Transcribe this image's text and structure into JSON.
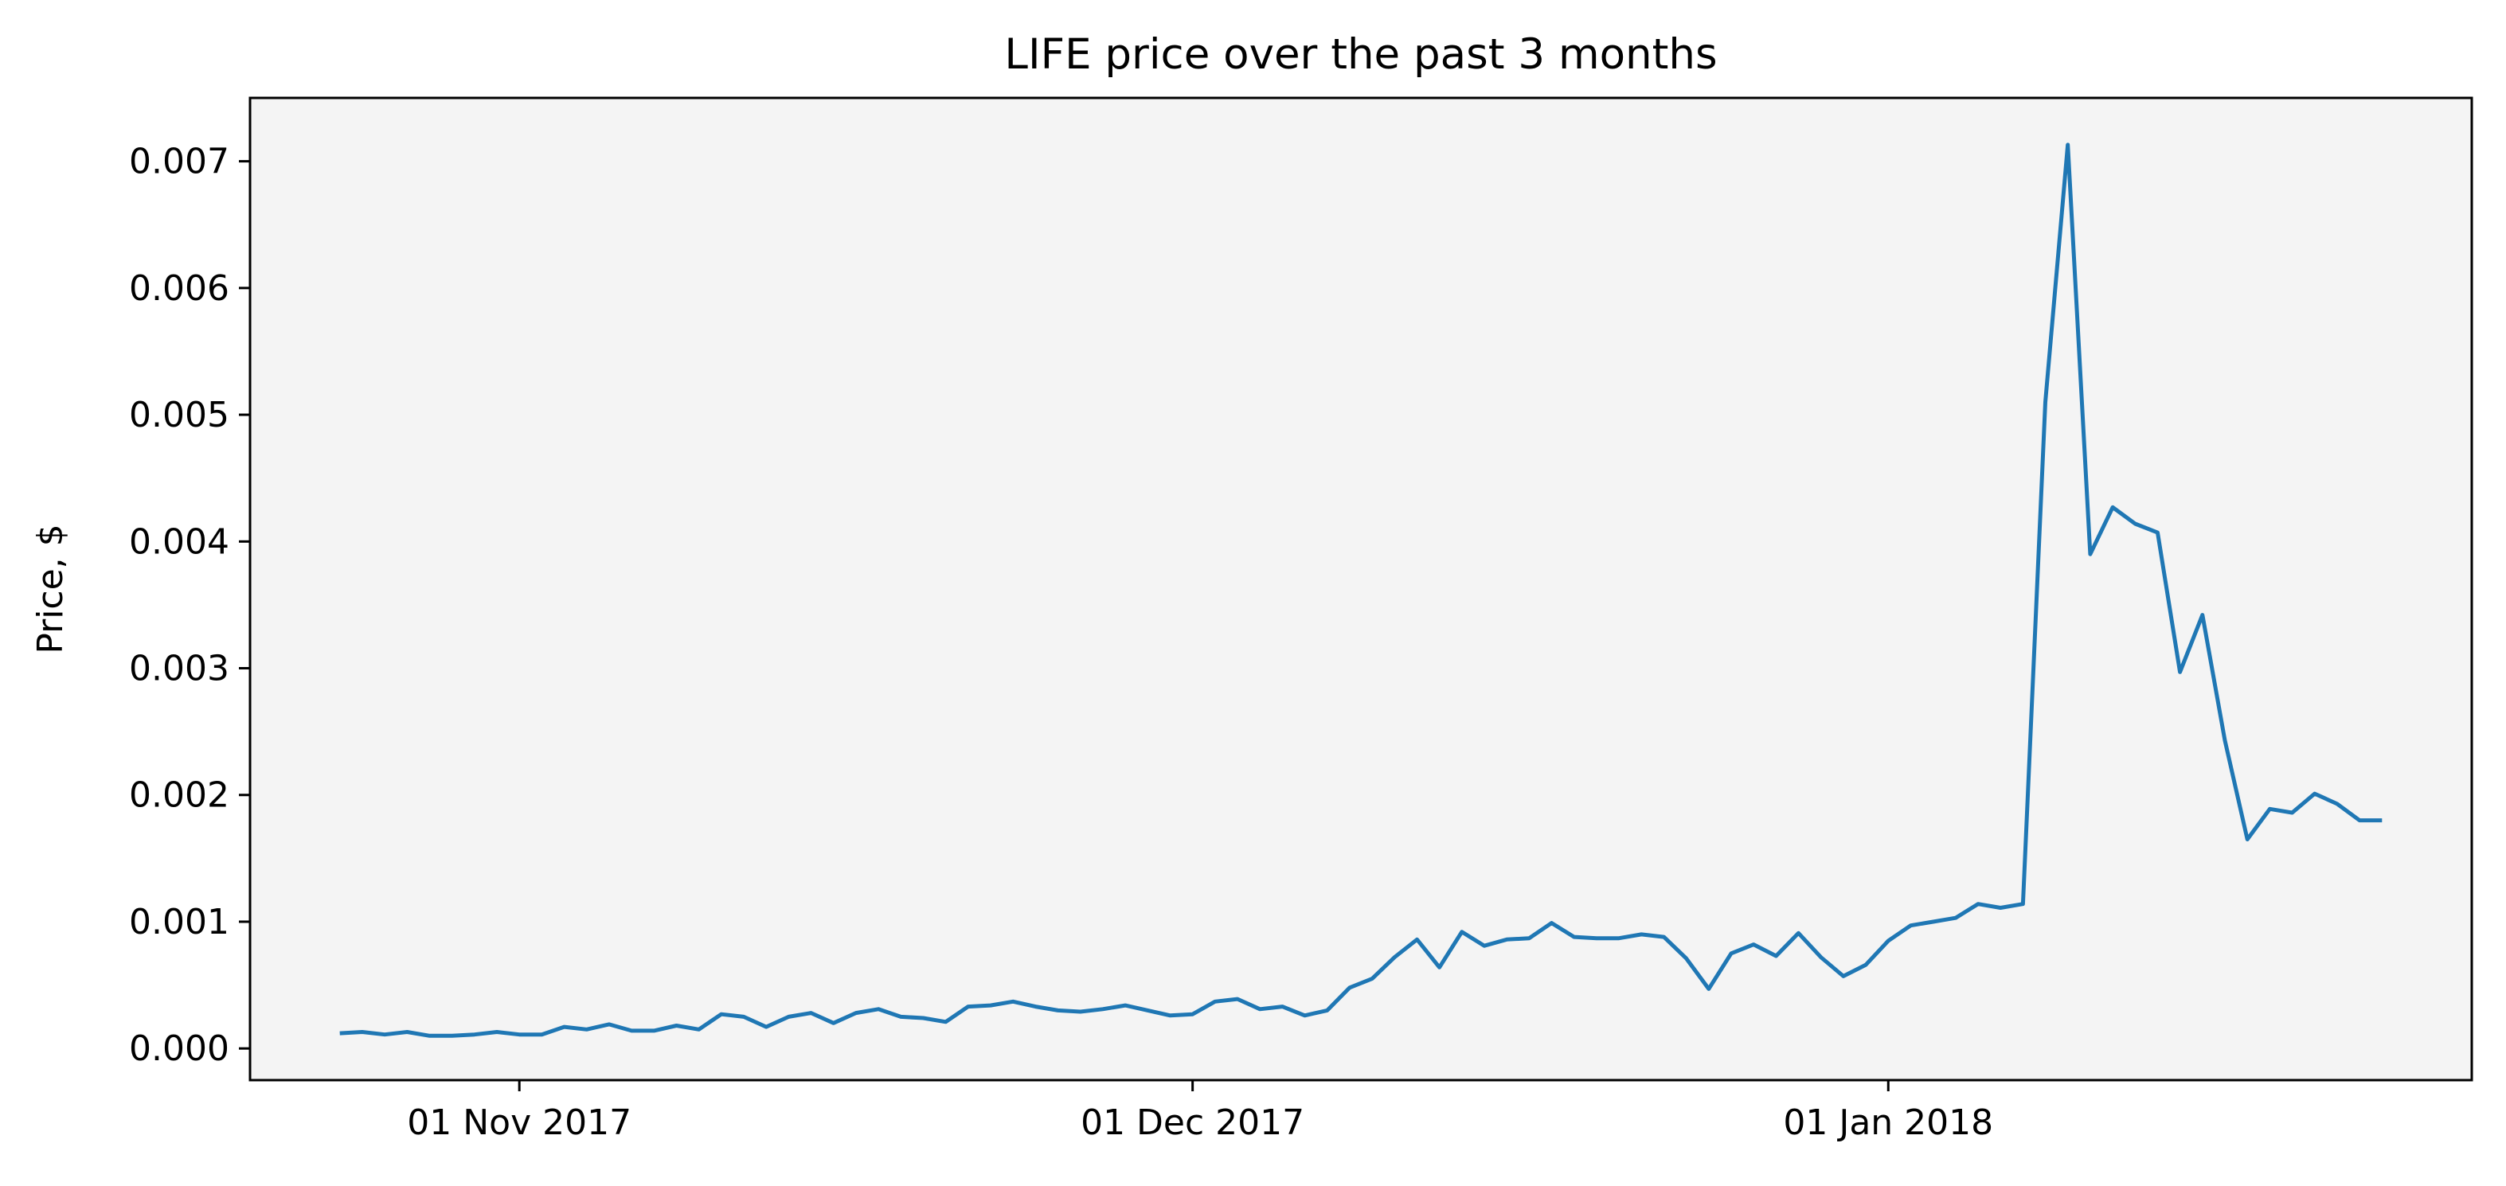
{
  "chart_data": {
    "type": "line",
    "title": "LIFE price over the past 3 months",
    "xlabel": "",
    "ylabel": "Price, $",
    "x_ticks": [
      {
        "date": "2017-11-01",
        "label": "01 Nov 2017"
      },
      {
        "date": "2017-12-01",
        "label": "01 Dec 2017"
      },
      {
        "date": "2018-01-01",
        "label": "01 Jan 2018"
      }
    ],
    "y_ticks": [
      {
        "value": 0.0,
        "label": "0.000"
      },
      {
        "value": 0.001,
        "label": "0.001"
      },
      {
        "value": 0.002,
        "label": "0.002"
      },
      {
        "value": 0.003,
        "label": "0.003"
      },
      {
        "value": 0.004,
        "label": "0.004"
      },
      {
        "value": 0.005,
        "label": "0.005"
      },
      {
        "value": 0.006,
        "label": "0.006"
      },
      {
        "value": 0.007,
        "label": "0.007"
      }
    ],
    "xlim": [
      "2017-10-20",
      "2018-01-27"
    ],
    "ylim": [
      -0.00025,
      0.0075
    ],
    "grid": false,
    "legend": "none",
    "plot_background": "#f4f4f4",
    "series": [
      {
        "color": "#1f77b4",
        "x": [
          "2017-10-24",
          "2017-10-25",
          "2017-10-26",
          "2017-10-27",
          "2017-10-28",
          "2017-10-29",
          "2017-10-30",
          "2017-10-31",
          "2017-11-01",
          "2017-11-02",
          "2017-11-03",
          "2017-11-04",
          "2017-11-05",
          "2017-11-06",
          "2017-11-07",
          "2017-11-08",
          "2017-11-09",
          "2017-11-10",
          "2017-11-11",
          "2017-11-12",
          "2017-11-13",
          "2017-11-14",
          "2017-11-15",
          "2017-11-16",
          "2017-11-17",
          "2017-11-18",
          "2017-11-19",
          "2017-11-20",
          "2017-11-21",
          "2017-11-22",
          "2017-11-23",
          "2017-11-24",
          "2017-11-25",
          "2017-11-26",
          "2017-11-27",
          "2017-11-28",
          "2017-11-29",
          "2017-11-30",
          "2017-12-01",
          "2017-12-02",
          "2017-12-03",
          "2017-12-04",
          "2017-12-05",
          "2017-12-06",
          "2017-12-07",
          "2017-12-08",
          "2017-12-09",
          "2017-12-10",
          "2017-12-11",
          "2017-12-12",
          "2017-12-13",
          "2017-12-14",
          "2017-12-15",
          "2017-12-16",
          "2017-12-17",
          "2017-12-18",
          "2017-12-19",
          "2017-12-20",
          "2017-12-21",
          "2017-12-22",
          "2017-12-23",
          "2017-12-24",
          "2017-12-25",
          "2017-12-26",
          "2017-12-27",
          "2017-12-28",
          "2017-12-29",
          "2017-12-30",
          "2017-12-31",
          "2018-01-01",
          "2018-01-02",
          "2018-01-03",
          "2018-01-04",
          "2018-01-05",
          "2018-01-06",
          "2018-01-07",
          "2018-01-08",
          "2018-01-09",
          "2018-01-10",
          "2018-01-11",
          "2018-01-12",
          "2018-01-13",
          "2018-01-14",
          "2018-01-15",
          "2018-01-16",
          "2018-01-17",
          "2018-01-18",
          "2018-01-19",
          "2018-01-20",
          "2018-01-21",
          "2018-01-22",
          "2018-01-23"
        ],
        "values": [
          0.00012,
          0.00013,
          0.00011,
          0.00013,
          0.0001,
          0.0001,
          0.00011,
          0.00013,
          0.00011,
          0.00011,
          0.00017,
          0.00015,
          0.00019,
          0.00014,
          0.00014,
          0.00018,
          0.00015,
          0.00027,
          0.00025,
          0.00017,
          0.00025,
          0.00028,
          0.0002,
          0.00028,
          0.00031,
          0.00025,
          0.00024,
          0.00021,
          0.00033,
          0.00034,
          0.00037,
          0.00033,
          0.0003,
          0.00029,
          0.00031,
          0.00034,
          0.0003,
          0.00026,
          0.00027,
          0.00037,
          0.00039,
          0.00031,
          0.00033,
          0.00026,
          0.0003,
          0.00048,
          0.00055,
          0.00072,
          0.00086,
          0.00064,
          0.00092,
          0.00081,
          0.00086,
          0.00087,
          0.00099,
          0.00088,
          0.00087,
          0.00087,
          0.0009,
          0.00088,
          0.00071,
          0.00047,
          0.00075,
          0.00082,
          0.00073,
          0.00091,
          0.00072,
          0.00057,
          0.00066,
          0.00085,
          0.00097,
          0.001,
          0.00103,
          0.00114,
          0.00111,
          0.00114,
          0.0051,
          0.00713,
          0.0039,
          0.00427,
          0.00414,
          0.00407,
          0.00297,
          0.00342,
          0.00243,
          0.00165,
          0.00189,
          0.00186,
          0.00201,
          0.00193,
          0.0018,
          0.0018
        ]
      }
    ]
  }
}
